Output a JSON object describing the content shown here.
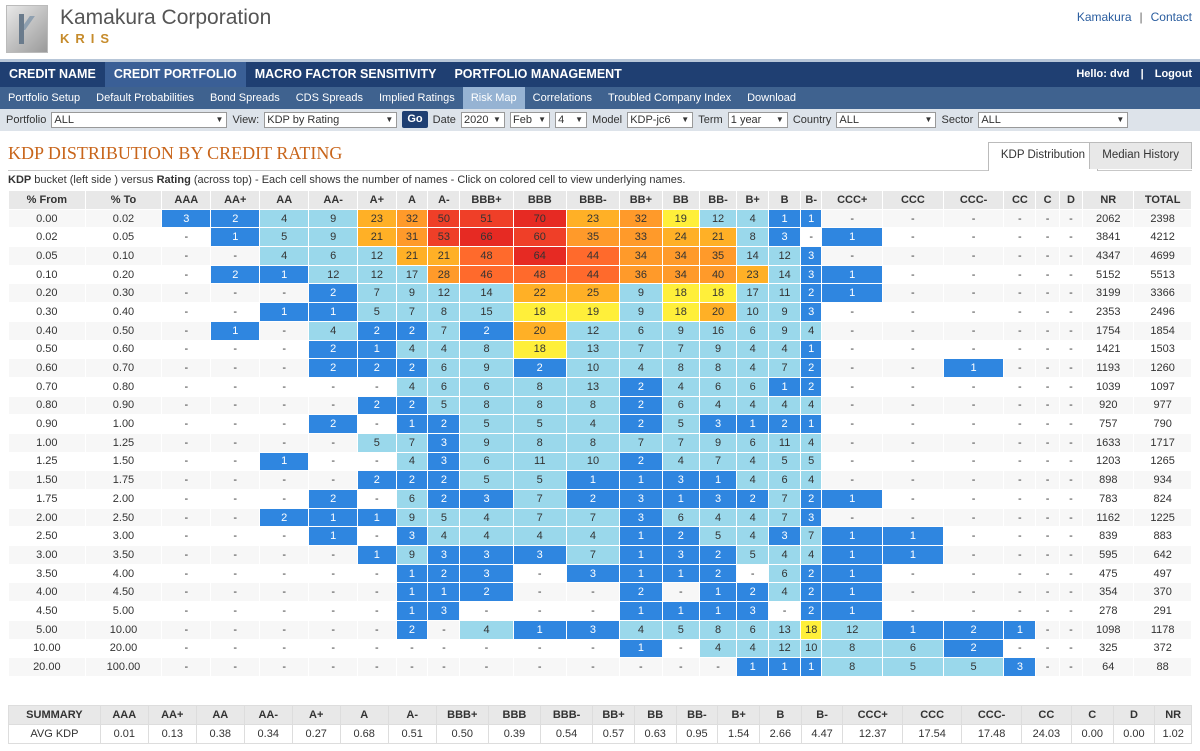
{
  "brand": {
    "name": "Kamakura Corporation",
    "sub": "KRIS"
  },
  "top_links": [
    "Kamakura",
    "Contact"
  ],
  "nav1": {
    "items": [
      "CREDIT NAME",
      "CREDIT PORTFOLIO",
      "MACRO FACTOR SENSITIVITY",
      "PORTFOLIO MANAGEMENT"
    ],
    "active": 1,
    "hello": "Hello: dvd",
    "logout": "Logout"
  },
  "nav2": {
    "items": [
      "Portfolio Setup",
      "Default Probabilities",
      "Bond Spreads",
      "CDS Spreads",
      "Implied Ratings",
      "Risk Map",
      "Correlations",
      "Troubled Company Index",
      "Download"
    ],
    "active": 5
  },
  "filters": {
    "portfolio_label": "Portfolio",
    "portfolio": "ALL",
    "view_label": "View:",
    "view": "KDP by Rating",
    "go": "Go",
    "date_label": "Date",
    "year": "2020",
    "month": "Feb",
    "day": "4",
    "model_label": "Model",
    "model": "KDP-jc6",
    "term_label": "Term",
    "term": "1 year",
    "country_label": "Country",
    "country": "ALL",
    "sector_label": "Sector",
    "sector": "ALL"
  },
  "title": "KDP DISTRIBUTION BY CREDIT RATING",
  "tabs": [
    "KDP Distribution",
    "Median History"
  ],
  "desc": {
    "bold1": "KDP",
    "t1": " bucket (left side ) versus ",
    "bold2": "Rating",
    "t2": " (across top) - Each cell shows the number of names - Click on colored cell to view underlying names."
  },
  "grid": {
    "headers": [
      "% From",
      "% To",
      "AAA",
      "AA+",
      "AA",
      "AA-",
      "A+",
      "A",
      "A-",
      "BBB+",
      "BBB",
      "BBB-",
      "BB+",
      "BB",
      "BB-",
      "B+",
      "B",
      "B-",
      "CCC+",
      "CCC",
      "CCC-",
      "CC",
      "C",
      "D",
      "NR",
      "TOTAL"
    ],
    "rows": [
      {
        "from": "0.00",
        "to": "0.02",
        "cells": [
          "3",
          "2",
          "4",
          "9",
          "23",
          "32",
          "50",
          "51",
          "70",
          "23",
          "32",
          "19",
          "12",
          "4",
          "1",
          "1",
          "-",
          "-",
          "-",
          "-",
          "-",
          "-"
        ],
        "nr": "2062",
        "total": "2398"
      },
      {
        "from": "0.02",
        "to": "0.05",
        "cells": [
          "-",
          "1",
          "5",
          "9",
          "21",
          "31",
          "53",
          "66",
          "60",
          "35",
          "33",
          "24",
          "21",
          "8",
          "3",
          "-",
          "1",
          "-",
          "-",
          "-",
          "-",
          "-"
        ],
        "nr": "3841",
        "total": "4212"
      },
      {
        "from": "0.05",
        "to": "0.10",
        "cells": [
          "-",
          "-",
          "4",
          "6",
          "12",
          "21",
          "21",
          "48",
          "64",
          "44",
          "34",
          "34",
          "35",
          "14",
          "12",
          "3",
          "-",
          "-",
          "-",
          "-",
          "-",
          "-"
        ],
        "nr": "4347",
        "total": "4699"
      },
      {
        "from": "0.10",
        "to": "0.20",
        "cells": [
          "-",
          "2",
          "1",
          "12",
          "12",
          "17",
          "28",
          "46",
          "48",
          "44",
          "36",
          "34",
          "40",
          "23",
          "14",
          "3",
          "1",
          "-",
          "-",
          "-",
          "-",
          "-"
        ],
        "nr": "5152",
        "total": "5513"
      },
      {
        "from": "0.20",
        "to": "0.30",
        "cells": [
          "-",
          "-",
          "-",
          "2",
          "7",
          "9",
          "12",
          "14",
          "22",
          "25",
          "9",
          "18",
          "18",
          "17",
          "11",
          "2",
          "1",
          "-",
          "-",
          "-",
          "-",
          "-"
        ],
        "nr": "3199",
        "total": "3366"
      },
      {
        "from": "0.30",
        "to": "0.40",
        "cells": [
          "-",
          "-",
          "1",
          "1",
          "5",
          "7",
          "8",
          "15",
          "18",
          "19",
          "9",
          "18",
          "20",
          "10",
          "9",
          "3",
          "-",
          "-",
          "-",
          "-",
          "-",
          "-"
        ],
        "nr": "2353",
        "total": "2496"
      },
      {
        "from": "0.40",
        "to": "0.50",
        "cells": [
          "-",
          "1",
          "-",
          "4",
          "2",
          "2",
          "7",
          "2",
          "20",
          "12",
          "6",
          "9",
          "16",
          "6",
          "9",
          "4",
          "-",
          "-",
          "-",
          "-",
          "-",
          "-"
        ],
        "nr": "1754",
        "total": "1854"
      },
      {
        "from": "0.50",
        "to": "0.60",
        "cells": [
          "-",
          "-",
          "-",
          "2",
          "1",
          "4",
          "4",
          "8",
          "18",
          "13",
          "7",
          "7",
          "9",
          "4",
          "4",
          "1",
          "-",
          "-",
          "-",
          "-",
          "-",
          "-"
        ],
        "nr": "1421",
        "total": "1503"
      },
      {
        "from": "0.60",
        "to": "0.70",
        "cells": [
          "-",
          "-",
          "-",
          "2",
          "2",
          "2",
          "6",
          "9",
          "2",
          "10",
          "4",
          "8",
          "8",
          "4",
          "7",
          "2",
          "-",
          "-",
          "1",
          "-",
          "-",
          "-"
        ],
        "nr": "1193",
        "total": "1260"
      },
      {
        "from": "0.70",
        "to": "0.80",
        "cells": [
          "-",
          "-",
          "-",
          "-",
          "-",
          "4",
          "6",
          "6",
          "8",
          "13",
          "2",
          "4",
          "6",
          "6",
          "1",
          "2",
          "-",
          "-",
          "-",
          "-",
          "-",
          "-"
        ],
        "nr": "1039",
        "total": "1097"
      },
      {
        "from": "0.80",
        "to": "0.90",
        "cells": [
          "-",
          "-",
          "-",
          "-",
          "2",
          "2",
          "5",
          "8",
          "8",
          "8",
          "2",
          "6",
          "4",
          "4",
          "4",
          "4",
          "-",
          "-",
          "-",
          "-",
          "-",
          "-"
        ],
        "nr": "920",
        "total": "977"
      },
      {
        "from": "0.90",
        "to": "1.00",
        "cells": [
          "-",
          "-",
          "-",
          "2",
          "-",
          "1",
          "2",
          "5",
          "5",
          "4",
          "2",
          "5",
          "3",
          "1",
          "2",
          "1",
          "-",
          "-",
          "-",
          "-",
          "-",
          "-"
        ],
        "nr": "757",
        "total": "790"
      },
      {
        "from": "1.00",
        "to": "1.25",
        "cells": [
          "-",
          "-",
          "-",
          "-",
          "5",
          "7",
          "3",
          "9",
          "8",
          "8",
          "7",
          "7",
          "9",
          "6",
          "11",
          "4",
          "-",
          "-",
          "-",
          "-",
          "-",
          "-"
        ],
        "nr": "1633",
        "total": "1717"
      },
      {
        "from": "1.25",
        "to": "1.50",
        "cells": [
          "-",
          "-",
          "1",
          "-",
          "-",
          "4",
          "3",
          "6",
          "11",
          "10",
          "2",
          "4",
          "7",
          "4",
          "5",
          "5",
          "-",
          "-",
          "-",
          "-",
          "-",
          "-"
        ],
        "nr": "1203",
        "total": "1265"
      },
      {
        "from": "1.50",
        "to": "1.75",
        "cells": [
          "-",
          "-",
          "-",
          "-",
          "2",
          "2",
          "2",
          "5",
          "5",
          "1",
          "1",
          "3",
          "1",
          "4",
          "6",
          "4",
          "-",
          "-",
          "-",
          "-",
          "-",
          "-"
        ],
        "nr": "898",
        "total": "934"
      },
      {
        "from": "1.75",
        "to": "2.00",
        "cells": [
          "-",
          "-",
          "-",
          "2",
          "-",
          "6",
          "2",
          "3",
          "7",
          "2",
          "3",
          "1",
          "3",
          "2",
          "7",
          "2",
          "1",
          "-",
          "-",
          "-",
          "-",
          "-"
        ],
        "nr": "783",
        "total": "824"
      },
      {
        "from": "2.00",
        "to": "2.50",
        "cells": [
          "-",
          "-",
          "2",
          "1",
          "1",
          "9",
          "5",
          "4",
          "7",
          "7",
          "3",
          "6",
          "4",
          "4",
          "7",
          "3",
          "-",
          "-",
          "-",
          "-",
          "-",
          "-"
        ],
        "nr": "1162",
        "total": "1225"
      },
      {
        "from": "2.50",
        "to": "3.00",
        "cells": [
          "-",
          "-",
          "-",
          "1",
          "-",
          "3",
          "4",
          "4",
          "4",
          "4",
          "1",
          "2",
          "5",
          "4",
          "3",
          "7",
          "1",
          "1",
          "-",
          "-",
          "-",
          "-"
        ],
        "nr": "839",
        "total": "883"
      },
      {
        "from": "3.00",
        "to": "3.50",
        "cells": [
          "-",
          "-",
          "-",
          "-",
          "1",
          "9",
          "3",
          "3",
          "3",
          "7",
          "1",
          "3",
          "2",
          "5",
          "4",
          "4",
          "1",
          "1",
          "-",
          "-",
          "-",
          "-"
        ],
        "nr": "595",
        "total": "642"
      },
      {
        "from": "3.50",
        "to": "4.00",
        "cells": [
          "-",
          "-",
          "-",
          "-",
          "-",
          "1",
          "2",
          "3",
          "-",
          "3",
          "1",
          "1",
          "2",
          "-",
          "6",
          "2",
          "1",
          "-",
          "-",
          "-",
          "-",
          "-"
        ],
        "nr": "475",
        "total": "497"
      },
      {
        "from": "4.00",
        "to": "4.50",
        "cells": [
          "-",
          "-",
          "-",
          "-",
          "-",
          "1",
          "1",
          "2",
          "-",
          "-",
          "2",
          "-",
          "1",
          "2",
          "4",
          "2",
          "1",
          "-",
          "-",
          "-",
          "-",
          "-"
        ],
        "nr": "354",
        "total": "370"
      },
      {
        "from": "4.50",
        "to": "5.00",
        "cells": [
          "-",
          "-",
          "-",
          "-",
          "-",
          "1",
          "3",
          "-",
          "-",
          "-",
          "1",
          "1",
          "1",
          "3",
          "-",
          "2",
          "1",
          "-",
          "-",
          "-",
          "-",
          "-"
        ],
        "nr": "278",
        "total": "291"
      },
      {
        "from": "5.00",
        "to": "10.00",
        "cells": [
          "-",
          "-",
          "-",
          "-",
          "-",
          "2",
          "-",
          "4",
          "1",
          "3",
          "4",
          "5",
          "8",
          "6",
          "13",
          "18",
          "12",
          "1",
          "2",
          "1",
          "-",
          "-"
        ],
        "nr": "1098",
        "total": "1178"
      },
      {
        "from": "10.00",
        "to": "20.00",
        "cells": [
          "-",
          "-",
          "-",
          "-",
          "-",
          "-",
          "-",
          "-",
          "-",
          "-",
          "1",
          "-",
          "4",
          "4",
          "12",
          "10",
          "8",
          "6",
          "2",
          "-",
          "-",
          "-"
        ],
        "nr": "325",
        "total": "372"
      },
      {
        "from": "20.00",
        "to": "100.00",
        "cells": [
          "-",
          "-",
          "-",
          "-",
          "-",
          "-",
          "-",
          "-",
          "-",
          "-",
          "-",
          "-",
          "-",
          "1",
          "1",
          "1",
          "8",
          "5",
          "5",
          "3",
          "-",
          "-"
        ],
        "nr": "64",
        "total": "88"
      }
    ]
  },
  "summary": {
    "headers": [
      "SUMMARY",
      "AAA",
      "AA+",
      "AA",
      "AA-",
      "A+",
      "A",
      "A-",
      "BBB+",
      "BBB",
      "BBB-",
      "BB+",
      "BB",
      "BB-",
      "B+",
      "B",
      "B-",
      "CCC+",
      "CCC",
      "CCC-",
      "CC",
      "C",
      "D",
      "NR"
    ],
    "label": "AVG KDP",
    "values": [
      "0.01",
      "0.13",
      "0.38",
      "0.34",
      "0.27",
      "0.68",
      "0.51",
      "0.50",
      "0.39",
      "0.54",
      "0.57",
      "0.63",
      "0.95",
      "1.54",
      "2.66",
      "4.47",
      "12.37",
      "17.54",
      "17.48",
      "24.03",
      "0.00",
      "0.00",
      "1.02"
    ]
  },
  "colors": {
    "nav_dark": "#1f3f72",
    "nav_sub": "#3f628f",
    "title": "#c8651b",
    "blue": "#2f86e0",
    "light_blue": "#9ad8eb",
    "pale_blue": "#c9ecf3",
    "yellow": "#ffef3a",
    "orange": "#ffb026",
    "orange_red": "#ff7a2c",
    "red": "#ef3f28",
    "deep_red": "#e62a23"
  }
}
